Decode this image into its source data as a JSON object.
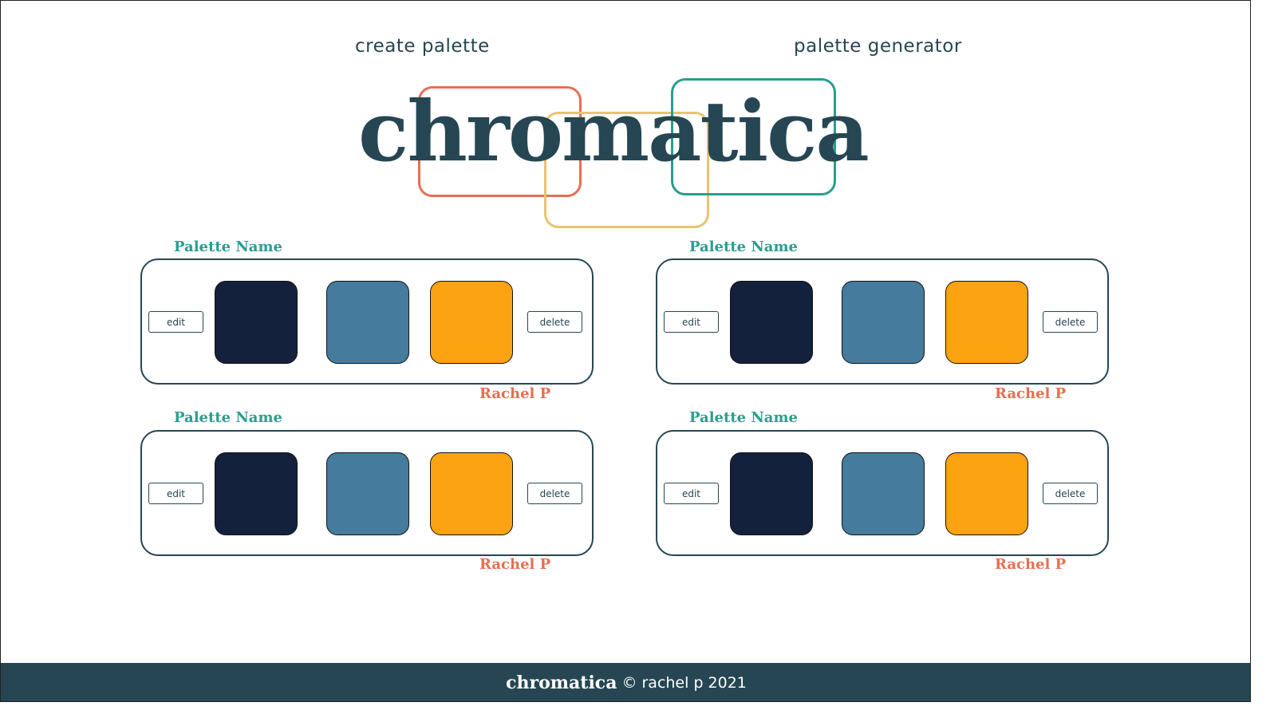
{
  "nav": {
    "create_label": "create palette",
    "generator_label": "palette generator"
  },
  "logo": {
    "text": "chromatica",
    "box_colors": [
      "#e76f51",
      "#e9c46a",
      "#2a9d8f"
    ]
  },
  "palettes": [
    {
      "name": "Palette Name",
      "author": "Rachel P",
      "edit_label": "edit",
      "delete_label": "delete",
      "colors": [
        "#14213d",
        "#457b9d",
        "#fca311"
      ]
    },
    {
      "name": "Palette Name",
      "author": "Rachel P",
      "edit_label": "edit",
      "delete_label": "delete",
      "colors": [
        "#14213d",
        "#457b9d",
        "#fca311"
      ]
    },
    {
      "name": "Palette Name",
      "author": "Rachel P",
      "edit_label": "edit",
      "delete_label": "delete",
      "colors": [
        "#14213d",
        "#457b9d",
        "#fca311"
      ]
    },
    {
      "name": "Palette Name",
      "author": "Rachel P",
      "edit_label": "edit",
      "delete_label": "delete",
      "colors": [
        "#14213d",
        "#457b9d",
        "#fca311"
      ]
    }
  ],
  "footer": {
    "logo": "chromatica",
    "copyright": "© rachel p 2021"
  },
  "colors": {
    "primary": "#264653",
    "accent_teal": "#2a9d8f",
    "accent_coral": "#e76f51",
    "accent_yellow": "#e9c46a"
  }
}
